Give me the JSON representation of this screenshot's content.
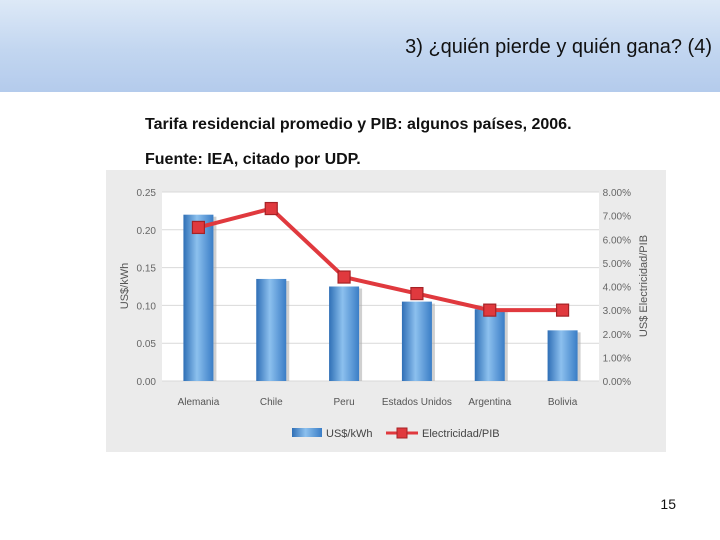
{
  "slide": {
    "title": "3) ¿quién pierde y quién gana? (4)",
    "subtitle_line1": "Tarifa residencial promedio y PIB: algunos países, 2006.",
    "subtitle_line2": "Fuente: IEA, citado por UDP.",
    "page_number": "15"
  },
  "chart_data": {
    "type": "bar",
    "categories": [
      "Alemania",
      "Chile",
      "Peru",
      "Estados Unidos",
      "Argentina",
      "Bolivia"
    ],
    "series": [
      {
        "name": "US$/kWh",
        "type": "bar",
        "axis": "left",
        "color": "#4a8fd4",
        "values": [
          0.22,
          0.135,
          0.125,
          0.105,
          0.095,
          0.067
        ]
      },
      {
        "name": "Electricidad/PIB",
        "type": "line",
        "axis": "right",
        "color": "#e0393e",
        "values": [
          6.5,
          7.3,
          4.4,
          3.7,
          3.0,
          3.0
        ]
      }
    ],
    "ylabel": "US$/kWh",
    "ylabel_right": "US$ Electricidad/PIB",
    "ylim": [
      0,
      0.25
    ],
    "ylim_right": [
      0,
      8
    ],
    "yticks": [
      "0.00",
      "0.05",
      "0.10",
      "0.15",
      "0.20",
      "0.25"
    ],
    "yticks_right": [
      "0.00%",
      "1.00%",
      "2.00%",
      "3.00%",
      "4.00%",
      "5.00%",
      "6.00%",
      "7.00%",
      "8.00%"
    ],
    "grid": true,
    "legend_position": "bottom"
  }
}
